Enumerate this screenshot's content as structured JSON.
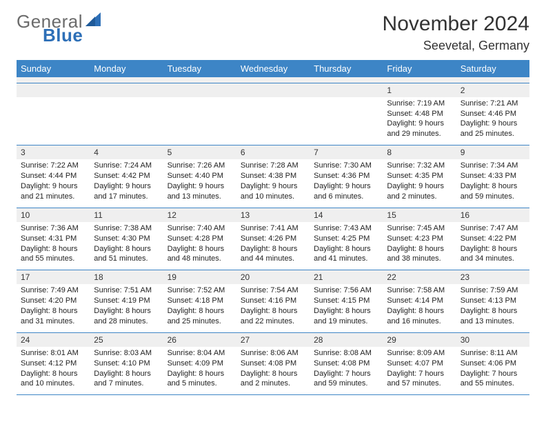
{
  "brand": {
    "line1": "General",
    "line2": "Blue",
    "text_color": "#6b6b6b",
    "accent_color": "#2d6fb7"
  },
  "title": "November 2024",
  "location": "Seevetal, Germany",
  "header_bg": "#3d85c6",
  "header_text": "#ffffff",
  "cell_shade": "#efefef",
  "border_color": "#3d85c6",
  "font_family": "Arial, Helvetica, sans-serif",
  "weekdays": [
    "Sunday",
    "Monday",
    "Tuesday",
    "Wednesday",
    "Thursday",
    "Friday",
    "Saturday"
  ],
  "weeks": [
    [
      null,
      null,
      null,
      null,
      null,
      {
        "n": "1",
        "sr": "7:19 AM",
        "ss": "4:48 PM",
        "dl": "9 hours and 29 minutes."
      },
      {
        "n": "2",
        "sr": "7:21 AM",
        "ss": "4:46 PM",
        "dl": "9 hours and 25 minutes."
      }
    ],
    [
      {
        "n": "3",
        "sr": "7:22 AM",
        "ss": "4:44 PM",
        "dl": "9 hours and 21 minutes."
      },
      {
        "n": "4",
        "sr": "7:24 AM",
        "ss": "4:42 PM",
        "dl": "9 hours and 17 minutes."
      },
      {
        "n": "5",
        "sr": "7:26 AM",
        "ss": "4:40 PM",
        "dl": "9 hours and 13 minutes."
      },
      {
        "n": "6",
        "sr": "7:28 AM",
        "ss": "4:38 PM",
        "dl": "9 hours and 10 minutes."
      },
      {
        "n": "7",
        "sr": "7:30 AM",
        "ss": "4:36 PM",
        "dl": "9 hours and 6 minutes."
      },
      {
        "n": "8",
        "sr": "7:32 AM",
        "ss": "4:35 PM",
        "dl": "9 hours and 2 minutes."
      },
      {
        "n": "9",
        "sr": "7:34 AM",
        "ss": "4:33 PM",
        "dl": "8 hours and 59 minutes."
      }
    ],
    [
      {
        "n": "10",
        "sr": "7:36 AM",
        "ss": "4:31 PM",
        "dl": "8 hours and 55 minutes."
      },
      {
        "n": "11",
        "sr": "7:38 AM",
        "ss": "4:30 PM",
        "dl": "8 hours and 51 minutes."
      },
      {
        "n": "12",
        "sr": "7:40 AM",
        "ss": "4:28 PM",
        "dl": "8 hours and 48 minutes."
      },
      {
        "n": "13",
        "sr": "7:41 AM",
        "ss": "4:26 PM",
        "dl": "8 hours and 44 minutes."
      },
      {
        "n": "14",
        "sr": "7:43 AM",
        "ss": "4:25 PM",
        "dl": "8 hours and 41 minutes."
      },
      {
        "n": "15",
        "sr": "7:45 AM",
        "ss": "4:23 PM",
        "dl": "8 hours and 38 minutes."
      },
      {
        "n": "16",
        "sr": "7:47 AM",
        "ss": "4:22 PM",
        "dl": "8 hours and 34 minutes."
      }
    ],
    [
      {
        "n": "17",
        "sr": "7:49 AM",
        "ss": "4:20 PM",
        "dl": "8 hours and 31 minutes."
      },
      {
        "n": "18",
        "sr": "7:51 AM",
        "ss": "4:19 PM",
        "dl": "8 hours and 28 minutes."
      },
      {
        "n": "19",
        "sr": "7:52 AM",
        "ss": "4:18 PM",
        "dl": "8 hours and 25 minutes."
      },
      {
        "n": "20",
        "sr": "7:54 AM",
        "ss": "4:16 PM",
        "dl": "8 hours and 22 minutes."
      },
      {
        "n": "21",
        "sr": "7:56 AM",
        "ss": "4:15 PM",
        "dl": "8 hours and 19 minutes."
      },
      {
        "n": "22",
        "sr": "7:58 AM",
        "ss": "4:14 PM",
        "dl": "8 hours and 16 minutes."
      },
      {
        "n": "23",
        "sr": "7:59 AM",
        "ss": "4:13 PM",
        "dl": "8 hours and 13 minutes."
      }
    ],
    [
      {
        "n": "24",
        "sr": "8:01 AM",
        "ss": "4:12 PM",
        "dl": "8 hours and 10 minutes."
      },
      {
        "n": "25",
        "sr": "8:03 AM",
        "ss": "4:10 PM",
        "dl": "8 hours and 7 minutes."
      },
      {
        "n": "26",
        "sr": "8:04 AM",
        "ss": "4:09 PM",
        "dl": "8 hours and 5 minutes."
      },
      {
        "n": "27",
        "sr": "8:06 AM",
        "ss": "4:08 PM",
        "dl": "8 hours and 2 minutes."
      },
      {
        "n": "28",
        "sr": "8:08 AM",
        "ss": "4:08 PM",
        "dl": "7 hours and 59 minutes."
      },
      {
        "n": "29",
        "sr": "8:09 AM",
        "ss": "4:07 PM",
        "dl": "7 hours and 57 minutes."
      },
      {
        "n": "30",
        "sr": "8:11 AM",
        "ss": "4:06 PM",
        "dl": "7 hours and 55 minutes."
      }
    ]
  ],
  "labels": {
    "sunrise": "Sunrise:",
    "sunset": "Sunset:",
    "daylight": "Daylight:"
  }
}
